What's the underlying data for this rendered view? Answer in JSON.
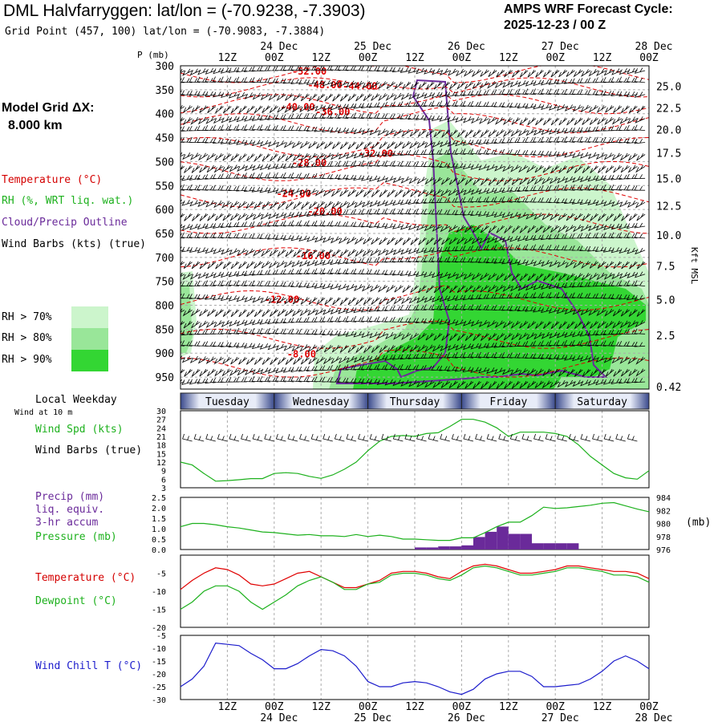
{
  "header": {
    "title": "DML Halvfarryggen:  lat/lon = (-70.9238, -7.3903)",
    "grid_point": "Grid Point (457, 100) lat/lon = (-70.9083, -7.3884)",
    "cycle_label": "AMPS WRF Forecast Cycle:",
    "cycle_value": "2025-12-23 / 00  Z"
  },
  "legend": {
    "grid_label": "Model Grid ΔX:",
    "grid_value": "8.000 km",
    "temperature": "Temperature (°C)",
    "rh": "RH (%, WRT liq. wat.)",
    "cloud": "Cloud/Precip Outline",
    "wind": "Wind Barbs (kts) (true)",
    "rh70": "RH > 70%",
    "rh80": "RH > 80%",
    "rh90": "RH > 90%",
    "rh_colors": [
      "#ccf5cc",
      "#99e699",
      "#33d633"
    ]
  },
  "labels": {
    "p_axis": "P (mb)",
    "kft": "Kft MSL",
    "local_weekday": "Local Weekday",
    "wind10": "Wind at 10 m",
    "wind_spd": "Wind Spd (kts)",
    "wind_barbs": "Wind Barbs (true)",
    "precip1": "Precip (mm)",
    "precip2": "liq. equiv.",
    "precip3": "3-hr accum",
    "pressure": "Pressure (mb)",
    "pressure_unit": "(mb)",
    "temp": "Temperature (°C)",
    "dewpoint": "Dewpoint (°C)",
    "windchill": "Wind Chill T (°C)"
  },
  "time_axis": {
    "top_hours": [
      "12Z",
      "00Z",
      "12Z",
      "00Z",
      "12Z",
      "00Z",
      "12Z",
      "00Z",
      "12Z",
      "00Z"
    ],
    "top_dates": [
      "24 Dec",
      "25 Dec",
      "26 Dec",
      "27 Dec",
      "28 Dec"
    ],
    "bottom_hours": [
      "12Z",
      "00Z",
      "12Z",
      "00Z",
      "12Z",
      "00Z",
      "12Z",
      "00Z",
      "12Z",
      "00Z"
    ],
    "bottom_dates": [
      "24 Dec",
      "25 Dec",
      "26 Dec",
      "27 Dec",
      "28 Dec"
    ],
    "weekdays": [
      "Tuesday",
      "Wednesday",
      "Thursday",
      "Friday",
      "Saturday"
    ]
  },
  "chart_data": [
    {
      "type": "contour",
      "title": "Time-height cross section",
      "ylabel": "P (mb)",
      "y2label": "Kft MSL",
      "ylim": [
        975,
        300
      ],
      "p_ticks": [
        300,
        350,
        400,
        450,
        500,
        550,
        600,
        650,
        700,
        750,
        800,
        850,
        900,
        950
      ],
      "kft_ticks": [
        {
          "p": 343,
          "label": "25.0"
        },
        {
          "p": 388,
          "label": "22.5"
        },
        {
          "p": 433,
          "label": "20.0"
        },
        {
          "p": 482,
          "label": "17.5"
        },
        {
          "p": 535,
          "label": "15.0"
        },
        {
          "p": 592,
          "label": "12.5"
        },
        {
          "p": 653,
          "label": "10.0"
        },
        {
          "p": 718,
          "label": "7.5"
        },
        {
          "p": 788,
          "label": "5.0"
        },
        {
          "p": 863,
          "label": "2.5"
        },
        {
          "p": 970,
          "label": "0.42"
        }
      ],
      "temperature_labels": [
        {
          "t": 33,
          "p": 312,
          "label": "-52.00"
        },
        {
          "t": 37,
          "p": 340,
          "label": "-48.00"
        },
        {
          "t": 46,
          "p": 343,
          "label": "-44.00"
        },
        {
          "t": 30,
          "p": 386,
          "label": "-40.00"
        },
        {
          "t": 39,
          "p": 396,
          "label": "-36.00"
        },
        {
          "t": 50,
          "p": 483,
          "label": "-32.00"
        },
        {
          "t": 33,
          "p": 503,
          "label": "-28.00"
        },
        {
          "t": 29,
          "p": 567,
          "label": "-24.00"
        },
        {
          "t": 37,
          "p": 604,
          "label": "-20.00"
        },
        {
          "t": 34,
          "p": 697,
          "label": "-16.00"
        },
        {
          "t": 26,
          "p": 788,
          "label": "-12.00"
        },
        {
          "t": 31,
          "p": 902,
          "label": "-8.00"
        }
      ]
    },
    {
      "type": "line",
      "title": "Wind Spd (kts)",
      "ylim": [
        3,
        30
      ],
      "y_ticks": [
        3,
        6,
        9,
        12,
        15,
        18,
        21,
        24,
        27,
        30
      ],
      "x_hours": [
        0,
        3,
        6,
        9,
        12,
        15,
        18,
        21,
        24,
        27,
        30,
        33,
        36,
        39,
        42,
        45,
        48,
        51,
        54,
        57,
        60,
        63,
        66,
        69,
        72,
        75,
        78,
        81,
        84,
        87,
        90,
        93,
        96,
        99,
        102,
        105,
        108,
        111,
        114,
        117,
        120
      ],
      "series": [
        {
          "name": "Wind Spd (kts)",
          "color": "#1db11d",
          "values": [
            12,
            11,
            8,
            5.3,
            5.5,
            5.8,
            6.2,
            6.2,
            8,
            8.3,
            8,
            7,
            6.3,
            7.5,
            9.5,
            12,
            16,
            19.3,
            21,
            21.3,
            21,
            22,
            22.3,
            24.5,
            27,
            27,
            26,
            24,
            21,
            22.5,
            22.5,
            22.5,
            22,
            21,
            18,
            14,
            11,
            8,
            6.5,
            6,
            9
          ]
        }
      ]
    },
    {
      "type": "bar+line",
      "title": "Precip (mm) / Pressure (mb)",
      "ylim": [
        0,
        2.5
      ],
      "y_ticks": [
        "0.0",
        "0.5",
        "1.0",
        "1.5",
        "2.0",
        "2.5"
      ],
      "y2lim": [
        976,
        984
      ],
      "y2_ticks": [
        976,
        978,
        980,
        982,
        984
      ],
      "precip": [
        {
          "t0": 60,
          "t1": 63,
          "v": 0.1
        },
        {
          "t0": 63,
          "t1": 66,
          "v": 0.1
        },
        {
          "t0": 66,
          "t1": 69,
          "v": 0.15
        },
        {
          "t0": 69,
          "t1": 72,
          "v": 0.15
        },
        {
          "t0": 72,
          "t1": 75,
          "v": 0.2
        },
        {
          "t0": 75,
          "t1": 78,
          "v": 0.6
        },
        {
          "t0": 78,
          "t1": 81,
          "v": 0.85
        },
        {
          "t0": 81,
          "t1": 84,
          "v": 1.1
        },
        {
          "t0": 84,
          "t1": 87,
          "v": 0.75
        },
        {
          "t0": 87,
          "t1": 90,
          "v": 0.75
        },
        {
          "t0": 90,
          "t1": 93,
          "v": 0.3
        },
        {
          "t0": 93,
          "t1": 96,
          "v": 0.3
        },
        {
          "t0": 96,
          "t1": 99,
          "v": 0.3
        },
        {
          "t0": 99,
          "t1": 102,
          "v": 0.3
        }
      ],
      "pressure_hours": [
        0,
        3,
        6,
        9,
        12,
        15,
        18,
        21,
        24,
        27,
        30,
        33,
        36,
        39,
        42,
        45,
        48,
        51,
        54,
        57,
        60,
        63,
        66,
        69,
        72,
        75,
        78,
        81,
        84,
        87,
        90,
        93,
        96,
        99,
        102,
        105,
        108,
        111,
        114,
        117,
        120
      ],
      "pressure": [
        979.5,
        980,
        980,
        979.8,
        979.5,
        979.3,
        979,
        978.7,
        978.6,
        978.4,
        978.2,
        978.3,
        978.1,
        978.1,
        978,
        978.3,
        978,
        978.2,
        978,
        977.6,
        977.6,
        977.5,
        977.4,
        977.4,
        977.8,
        977.8,
        978.6,
        979.5,
        980.2,
        980.2,
        981.2,
        982.5,
        982.3,
        982.4,
        982.6,
        982.8,
        983.1,
        983.2,
        982.7,
        982.2,
        981.8
      ]
    },
    {
      "type": "line",
      "title": "Temperature / Dewpoint (°C)",
      "ylim": [
        -20,
        0
      ],
      "y_ticks": [
        -20,
        -15,
        -10,
        -5
      ],
      "x_hours": [
        0,
        3,
        6,
        9,
        12,
        15,
        18,
        21,
        24,
        27,
        30,
        33,
        36,
        39,
        42,
        45,
        48,
        51,
        54,
        57,
        60,
        63,
        66,
        69,
        72,
        75,
        78,
        81,
        84,
        87,
        90,
        93,
        96,
        99,
        102,
        105,
        108,
        111,
        114,
        117,
        120
      ],
      "series": [
        {
          "name": "Temperature (°C)",
          "color": "#e00000",
          "values": [
            -9.5,
            -7,
            -5,
            -3.5,
            -4,
            -5.5,
            -8,
            -8.5,
            -8,
            -6.5,
            -5,
            -4.5,
            -6,
            -7.5,
            -9,
            -9,
            -8,
            -7,
            -5,
            -4.5,
            -4.5,
            -5,
            -6,
            -6.5,
            -4.5,
            -3,
            -2.5,
            -3,
            -4,
            -5,
            -5,
            -4.5,
            -4,
            -3,
            -3,
            -3.5,
            -4,
            -4.5,
            -4.5,
            -5,
            -6.5
          ]
        },
        {
          "name": "Dewpoint (°C)",
          "color": "#1db11d",
          "values": [
            -15,
            -13,
            -10,
            -8.5,
            -8.5,
            -10,
            -13,
            -15,
            -13,
            -11,
            -8.5,
            -7,
            -6,
            -7.5,
            -9.5,
            -9.5,
            -8,
            -7.5,
            -5.5,
            -5,
            -5,
            -5.5,
            -6.5,
            -7,
            -5.5,
            -3.5,
            -3,
            -3.5,
            -4.5,
            -5.5,
            -5.5,
            -5,
            -4.5,
            -3.5,
            -3.5,
            -4,
            -4.5,
            -5.5,
            -5.5,
            -6,
            -7.5
          ]
        }
      ]
    },
    {
      "type": "line",
      "title": "Wind Chill T (°C)",
      "ylim": [
        -30,
        -5
      ],
      "y_ticks": [
        -30,
        -25,
        -20,
        -15,
        -10,
        -5
      ],
      "x_hours": [
        0,
        3,
        6,
        9,
        12,
        15,
        18,
        21,
        24,
        27,
        30,
        33,
        36,
        39,
        42,
        45,
        48,
        51,
        54,
        57,
        60,
        63,
        66,
        69,
        72,
        75,
        78,
        81,
        84,
        87,
        90,
        93,
        96,
        99,
        102,
        105,
        108,
        111,
        114,
        117,
        120
      ],
      "series": [
        {
          "name": "Wind Chill T (°C)",
          "color": "#1c1ccc",
          "values": [
            -25,
            -22,
            -17,
            -8,
            -8.5,
            -9,
            -12,
            -14.5,
            -18,
            -18,
            -16,
            -13,
            -10.5,
            -11,
            -13,
            -17,
            -23,
            -25,
            -25,
            -23.5,
            -23,
            -23.5,
            -25,
            -27,
            -28,
            -26,
            -22,
            -20,
            -19,
            -19,
            -21,
            -25,
            -25,
            -24.5,
            -24,
            -22,
            -19,
            -15,
            -13,
            -15,
            -18
          ]
        }
      ]
    }
  ]
}
